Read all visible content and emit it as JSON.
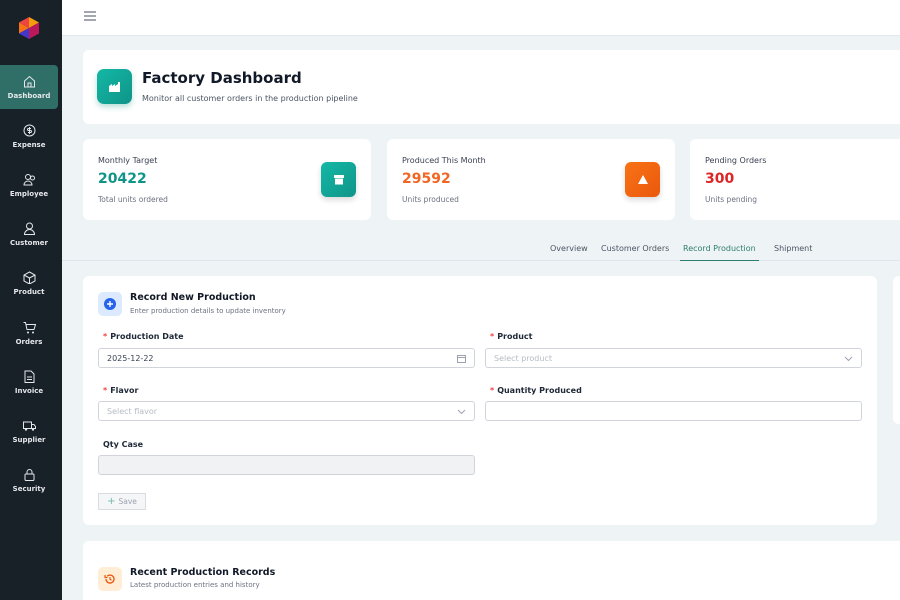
{
  "sidebar": {
    "items": [
      {
        "label": "Dashboard",
        "icon": "home-icon",
        "active": true
      },
      {
        "label": "Expense",
        "icon": "dollar-icon"
      },
      {
        "label": "Employee",
        "icon": "users-icon"
      },
      {
        "label": "Customer",
        "icon": "user-icon"
      },
      {
        "label": "Product",
        "icon": "box-icon"
      },
      {
        "label": "Orders",
        "icon": "cart-icon"
      },
      {
        "label": "Invoice",
        "icon": "file-icon"
      },
      {
        "label": "Supplier",
        "icon": "truck-icon"
      },
      {
        "label": "Security",
        "icon": "lock-icon"
      }
    ]
  },
  "header": {
    "title": "Factory Dashboard",
    "subtitle": "Monitor all customer orders in the production pipeline"
  },
  "stats": [
    {
      "label": "Monthly Target",
      "value": "20422",
      "sub": "Total units ordered",
      "color": "#0f9488"
    },
    {
      "label": "Produced This Month",
      "value": "29592",
      "sub": "Units produced",
      "color": "#f26522"
    },
    {
      "label": "Pending Orders",
      "value": "300",
      "sub": "Units pending",
      "color": "#dc2626"
    }
  ],
  "tabs": [
    {
      "label": "Overview"
    },
    {
      "label": "Customer Orders"
    },
    {
      "label": "Record Production",
      "active": true
    },
    {
      "label": "Shipment"
    }
  ],
  "form": {
    "title": "Record New Production",
    "subtitle": "Enter production details to update inventory",
    "production_date": {
      "label": "Production Date",
      "value": "2025-12-22"
    },
    "product": {
      "label": "Product",
      "placeholder": "Select product"
    },
    "flavor": {
      "label": "Flavor",
      "placeholder": "Select flavor"
    },
    "quantity": {
      "label": "Quantity Produced",
      "value": ""
    },
    "qty_case": {
      "label": "Qty Case",
      "value": ""
    },
    "required_mark": "*",
    "save_label": "Save"
  },
  "records": {
    "title": "Recent Production Records",
    "subtitle": "Latest production entries and history"
  }
}
